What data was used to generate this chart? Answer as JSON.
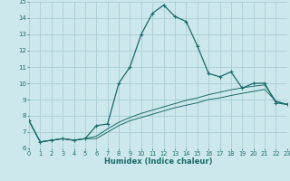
{
  "xlabel": "Humidex (Indice chaleur)",
  "bg_color": "#cce8ec",
  "grid_color": "#aacdd4",
  "line_color": "#1a6b6b",
  "x_values": [
    0,
    1,
    2,
    3,
    4,
    5,
    6,
    7,
    8,
    9,
    10,
    11,
    12,
    13,
    14,
    15,
    16,
    17,
    18,
    19,
    20,
    21,
    22,
    23
  ],
  "line1_y": [
    7.7,
    6.4,
    6.5,
    6.6,
    6.5,
    6.6,
    7.4,
    7.5,
    10.0,
    11.0,
    13.0,
    14.3,
    14.8,
    14.1,
    13.8,
    12.3,
    10.6,
    10.4,
    10.7,
    9.7,
    10.0,
    10.0,
    8.8,
    8.7
  ],
  "line2_y": [
    7.7,
    6.4,
    6.5,
    6.6,
    6.5,
    6.6,
    6.75,
    7.2,
    7.6,
    7.9,
    8.15,
    8.35,
    8.55,
    8.75,
    8.95,
    9.1,
    9.3,
    9.45,
    9.6,
    9.72,
    9.82,
    9.9,
    8.9,
    8.7
  ],
  "line3_y": [
    7.7,
    6.4,
    6.5,
    6.6,
    6.5,
    6.6,
    6.6,
    7.0,
    7.4,
    7.7,
    7.9,
    8.1,
    8.3,
    8.5,
    8.65,
    8.8,
    9.0,
    9.1,
    9.25,
    9.38,
    9.5,
    9.62,
    8.9,
    8.7
  ],
  "xlim": [
    0,
    23
  ],
  "ylim": [
    6.0,
    15.0
  ],
  "yticks": [
    6,
    7,
    8,
    9,
    10,
    11,
    12,
    13,
    14,
    15
  ],
  "xticks": [
    0,
    1,
    2,
    3,
    4,
    5,
    6,
    7,
    8,
    9,
    10,
    11,
    12,
    13,
    14,
    15,
    16,
    17,
    18,
    19,
    20,
    21,
    22,
    23
  ]
}
